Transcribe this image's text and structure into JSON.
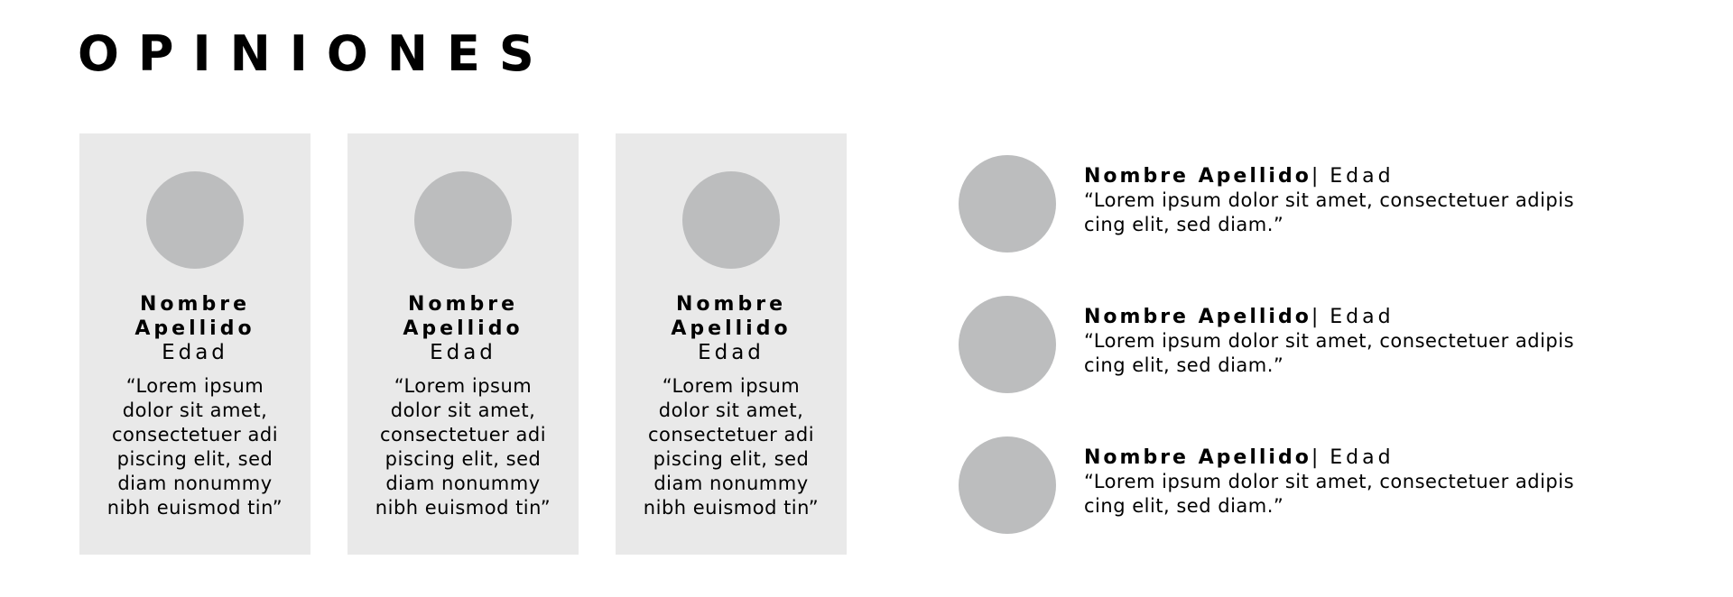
{
  "title": "OPINIONES",
  "cards": [
    {
      "name": "Nombre Apellido",
      "age": "Edad",
      "quote": "“Lorem ipsum\ndolor sit amet,\nconsectetuer adi\npiscing elit, sed\ndiam nonummy\nnibh euismod tin”"
    },
    {
      "name": "Nombre Apellido",
      "age": "Edad",
      "quote": "“Lorem ipsum\ndolor sit amet,\nconsectetuer adi\npiscing elit, sed\ndiam nonummy\nnibh euismod tin”"
    },
    {
      "name": "Nombre Apellido",
      "age": "Edad",
      "quote": "“Lorem ipsum\ndolor sit amet,\nconsectetuer adi\npiscing elit, sed\ndiam nonummy\nnibh euismod tin”"
    }
  ],
  "rows": [
    {
      "name": "Nombre Apellido",
      "separator": "|",
      "age": "Edad",
      "quote": "“Lorem ipsum dolor sit amet, consectetuer adipis\ncing elit, sed diam.”"
    },
    {
      "name": "Nombre Apellido",
      "separator": "|",
      "age": "Edad",
      "quote": "“Lorem ipsum dolor sit amet, consectetuer adipis\ncing elit, sed diam.”"
    },
    {
      "name": "Nombre Apellido",
      "separator": "|",
      "age": "Edad",
      "quote": "“Lorem ipsum dolor sit amet, consectetuer adipis\ncing elit, sed diam.”"
    }
  ],
  "colors": {
    "card_background": "#e9e9e9",
    "avatar_placeholder": "#bcbdbe",
    "text": "#000000"
  }
}
